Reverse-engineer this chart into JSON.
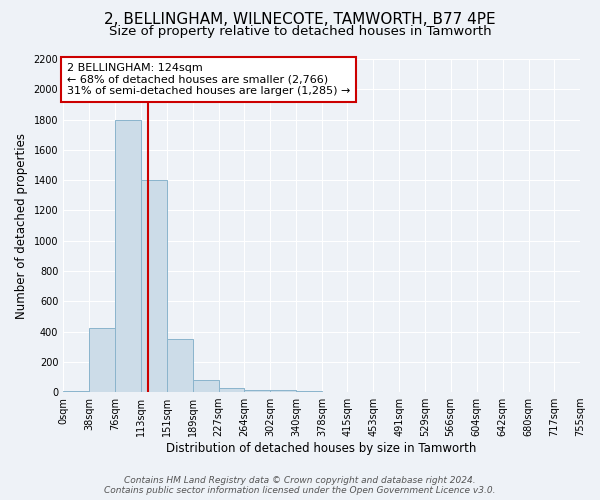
{
  "title": "2, BELLINGHAM, WILNECOTE, TAMWORTH, B77 4PE",
  "subtitle": "Size of property relative to detached houses in Tamworth",
  "xlabel": "Distribution of detached houses by size in Tamworth",
  "ylabel": "Number of detached properties",
  "bar_edges": [
    0,
    38,
    76,
    113,
    151,
    189,
    227,
    264,
    302,
    340,
    378,
    415,
    453,
    491,
    529,
    566,
    604,
    642,
    680,
    717,
    755
  ],
  "bar_heights": [
    5,
    425,
    1800,
    1400,
    350,
    80,
    30,
    15,
    15,
    5,
    0,
    0,
    0,
    0,
    0,
    0,
    0,
    0,
    0,
    0
  ],
  "bar_color": "#ccdce8",
  "bar_edgecolor": "#8ab4cc",
  "vline_x": 124,
  "vline_color": "#cc0000",
  "annotation_text": "2 BELLINGHAM: 124sqm\n← 68% of detached houses are smaller (2,766)\n31% of semi-detached houses are larger (1,285) →",
  "annotation_box_color": "#cc0000",
  "annotation_bg": "#ffffff",
  "ylim": [
    0,
    2200
  ],
  "yticks": [
    0,
    200,
    400,
    600,
    800,
    1000,
    1200,
    1400,
    1600,
    1800,
    2000,
    2200
  ],
  "bg_color": "#eef2f7",
  "grid_color": "#ffffff",
  "footer": "Contains HM Land Registry data © Crown copyright and database right 2024.\nContains public sector information licensed under the Open Government Licence v3.0.",
  "title_fontsize": 11,
  "subtitle_fontsize": 9.5,
  "xlabel_fontsize": 8.5,
  "ylabel_fontsize": 8.5,
  "tick_fontsize": 7,
  "annotation_fontsize": 8,
  "footer_fontsize": 6.5
}
